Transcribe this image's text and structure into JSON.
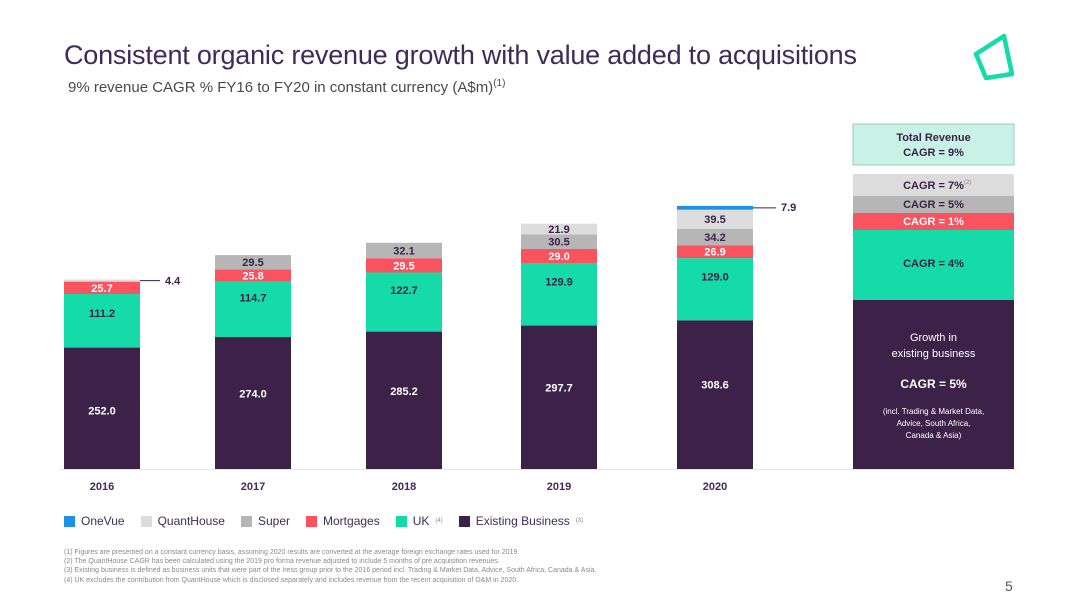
{
  "header": {
    "title": "Consistent organic revenue growth with value added to acquisitions",
    "subtitle": "9% revenue CAGR % FY16 to FY20 in constant currency (A$m)",
    "subtitle_sup": "(1)"
  },
  "colors": {
    "existing": "#3c2148",
    "uk": "#14dba8",
    "mortgages": "#f9535f",
    "super": "#b6b6b6",
    "quanthouse": "#dcdcdc",
    "onevue": "#1e90e8",
    "cagr_box_bg": "#c8f2e6",
    "accent": "#14dba8"
  },
  "chart_data": {
    "type": "bar",
    "stacked": true,
    "categories": [
      "2016",
      "2017",
      "2018",
      "2019",
      "2020"
    ],
    "series": [
      {
        "name": "Existing Business",
        "key": "existing",
        "values": [
          252.0,
          274.0,
          285.2,
          297.7,
          308.6
        ]
      },
      {
        "name": "UK",
        "key": "uk",
        "values": [
          111.2,
          114.7,
          122.7,
          129.9,
          129.0
        ]
      },
      {
        "name": "Mortgages",
        "key": "mortgages",
        "values": [
          25.7,
          25.8,
          29.5,
          29.0,
          26.9
        ]
      },
      {
        "name": "Super",
        "key": "super",
        "values": [
          0,
          29.5,
          32.1,
          30.5,
          34.2
        ]
      },
      {
        "name": "QuantHouse",
        "key": "quanthouse",
        "values": [
          0,
          0,
          0,
          21.9,
          39.5
        ]
      },
      {
        "name": "OneVue",
        "key": "onevue",
        "values": [
          0,
          0,
          0,
          0,
          7.9
        ]
      }
    ],
    "value_labels": [
      [
        "252.0",
        "111.2",
        "25.7",
        "",
        "",
        ""
      ],
      [
        "274.0",
        "114.7",
        "25.8",
        "29.5",
        "",
        ""
      ],
      [
        "285.2",
        "122.7",
        "29.5",
        "32.1",
        "",
        ""
      ],
      [
        "297.7",
        "129.9",
        "29.0",
        "30.5",
        "21.9",
        ""
      ],
      [
        "308.6",
        "129.0",
        "26.9",
        "34.2",
        "39.5",
        "7.9"
      ]
    ],
    "callout_2016": "4.4",
    "legend_position": "bottom",
    "grid": false
  },
  "cagr_panel": {
    "total_title": "Total Revenue",
    "total_cagr": "CAGR = 9%",
    "quanthouse_cagr": "CAGR = 7%",
    "quanthouse_sup": "(2)",
    "super_cagr": "CAGR = 5%",
    "mortgages_cagr": "CAGR = 1%",
    "uk_cagr": "CAGR = 4%",
    "existing_line1": "Growth in",
    "existing_line2": "existing business",
    "existing_cagr": "CAGR = 5%",
    "existing_note1": "(incl. Trading & Market Data,",
    "existing_note2": "Advice, South Africa,",
    "existing_note3": "Canada & Asia)"
  },
  "legend": [
    {
      "key": "onevue",
      "label": "OneVue",
      "sup": ""
    },
    {
      "key": "quanthouse",
      "label": "QuantHouse",
      "sup": ""
    },
    {
      "key": "super",
      "label": "Super",
      "sup": ""
    },
    {
      "key": "mortgages",
      "label": "Mortgages",
      "sup": ""
    },
    {
      "key": "uk",
      "label": "UK",
      "sup": "(4)"
    },
    {
      "key": "existing",
      "label": "Existing Business",
      "sup": "(3)"
    }
  ],
  "footnotes": [
    "(1) Figures are presented on a constant currency basis, assuming 2020 results are converted at the average foreign exchange rates used for 2019.",
    "(2) The QuantHouse CAGR has been calculated using the 2019 pro forma revenue adjusted to include 5 months of pre acquisition revenues.",
    "(3) Existing business is defined as business units that were part of the Iress group prior to the 2016 period incl. Trading & Market Data, Advice, South Africa, Canada & Asia.",
    "(4) UK excludes the contribution from QuantHouse which is disclosed separately and includes revenue from the recent acquisition of O&M in 2020."
  ],
  "page_number": "5"
}
